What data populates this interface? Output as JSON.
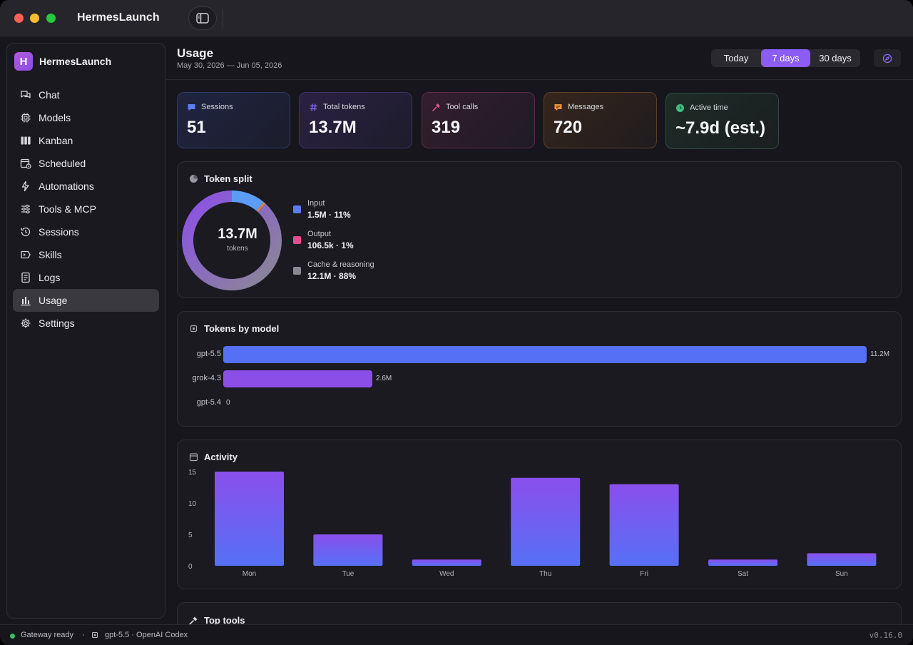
{
  "window": {
    "title": "HermesLaunch"
  },
  "sidebar": {
    "brand_initial": "H",
    "brand_name": "HermesLaunch",
    "items": [
      {
        "label": "Chat",
        "icon": "chat-icon"
      },
      {
        "label": "Models",
        "icon": "chip-icon"
      },
      {
        "label": "Kanban",
        "icon": "kanban-icon"
      },
      {
        "label": "Scheduled",
        "icon": "calendar-clock-icon"
      },
      {
        "label": "Automations",
        "icon": "bolt-icon"
      },
      {
        "label": "Tools & MCP",
        "icon": "sliders-icon"
      },
      {
        "label": "Sessions",
        "icon": "history-icon"
      },
      {
        "label": "Skills",
        "icon": "skill-icon"
      },
      {
        "label": "Logs",
        "icon": "log-icon"
      },
      {
        "label": "Usage",
        "icon": "bar-chart-icon",
        "active": true
      },
      {
        "label": "Settings",
        "icon": "gear-icon"
      }
    ]
  },
  "header": {
    "title": "Usage",
    "date_range": "May 30, 2026 — Jun 05, 2026",
    "ranges": [
      "Today",
      "7 days",
      "30 days"
    ],
    "selected_range": "7 days"
  },
  "stats": [
    {
      "label": "Sessions",
      "value": "51",
      "icon": "chat-bubble-icon",
      "color": "#5b7cf7"
    },
    {
      "label": "Total tokens",
      "value": "13.7M",
      "icon": "hash-icon",
      "color": "#8b6cf6"
    },
    {
      "label": "Tool calls",
      "value": "319",
      "icon": "hammer-icon",
      "color": "#e0508f"
    },
    {
      "label": "Messages",
      "value": "720",
      "icon": "message-icon",
      "color": "#f0923a"
    },
    {
      "label": "Active time",
      "value": "~7.9d (est.)",
      "icon": "clock-icon",
      "color": "#3fbf7f"
    }
  ],
  "token_split": {
    "title": "Token split",
    "total": "13.7M",
    "unit": "tokens",
    "items": [
      {
        "name": "Input",
        "value": "1.5M",
        "percent": "11%",
        "share": 0.11,
        "color": "#5b7cf7"
      },
      {
        "name": "Output",
        "value": "106.5k",
        "percent": "1%",
        "share": 0.008,
        "color": "#e0508f"
      },
      {
        "name": "Cache & reasoning",
        "value": "12.1M",
        "percent": "88%",
        "share": 0.882,
        "color": "#8a8992"
      }
    ]
  },
  "tokens_by_model": {
    "title": "Tokens by model",
    "models": [
      {
        "name": "gpt-5.5",
        "value": 11.2,
        "label": "11.2M",
        "color": "#5670f5"
      },
      {
        "name": "grok-4.3",
        "value": 2.6,
        "label": "2.6M",
        "color": "#8b4fe8"
      },
      {
        "name": "gpt-5.4",
        "value": 0,
        "label": "0",
        "color": "#8b4fe8"
      }
    ]
  },
  "activity": {
    "title": "Activity"
  },
  "top_tools": {
    "title": "Top tools"
  },
  "chart_data": {
    "type": "bar",
    "categories": [
      "Mon",
      "Tue",
      "Wed",
      "Thu",
      "Fri",
      "Sat",
      "Sun"
    ],
    "values": [
      15,
      5,
      1,
      14,
      13,
      1,
      2
    ],
    "yticks": [
      0,
      5,
      10,
      15
    ],
    "ylim": [
      0,
      15
    ],
    "xlabel": "",
    "ylabel": "",
    "title": "Activity",
    "grid": false
  },
  "statusbar": {
    "gateway": "Gateway ready",
    "separator": "·",
    "model": "gpt-5.5 · OpenAI Codex",
    "version": "v0.16.0"
  }
}
